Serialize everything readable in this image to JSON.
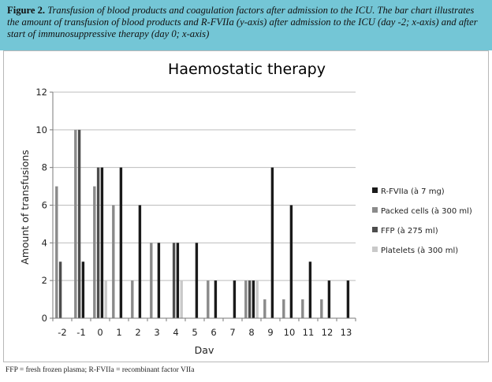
{
  "caption": {
    "label": "Figure 2.",
    "text": "Transfusion of blood products and coagulation factors after admission to the ICU. The bar chart illustrates the amount of transfusion of blood products and R-FVIIa (y-axis) after admission to the ICU (day -2; x-axis) and after start of immunosuppressive therapy (day 0; x-axis)"
  },
  "footnote": "FFP = fresh frozen plasma; R-FVIIa = recombinant factor VIIa",
  "chart_data": {
    "type": "bar",
    "title": "Haemostatic therapy",
    "xlabel": "Dav",
    "ylabel": "Amount of transfusions",
    "ylim": [
      0,
      12
    ],
    "yticks": [
      "0",
      "2",
      "4",
      "6",
      "8",
      "10",
      "12"
    ],
    "categories": [
      "-2",
      "-1",
      "0",
      "1",
      "2",
      "3",
      "4",
      "5",
      "6",
      "7",
      "8",
      "9",
      "10",
      "11",
      "12",
      "13"
    ],
    "grid": true,
    "legend_position": "right",
    "series": [
      {
        "name": "R-FVIIa (à 7 mg)",
        "color": "#1a1a1a",
        "values": [
          0,
          3,
          8,
          8,
          6,
          4,
          4,
          4,
          2,
          2,
          2,
          8,
          6,
          3,
          2,
          2
        ]
      },
      {
        "name": "Packed cells (à 300 ml)",
        "color": "#8a8a8a",
        "values": [
          7,
          10,
          7,
          6,
          2,
          4,
          0,
          0,
          2,
          0,
          2,
          1,
          1,
          1,
          1,
          0
        ]
      },
      {
        "name": "FFP (à 275 ml)",
        "color": "#4d4d4d",
        "values": [
          3,
          10,
          8,
          0,
          0,
          0,
          4,
          0,
          0,
          0,
          2,
          0,
          0,
          0,
          0,
          0
        ]
      },
      {
        "name": "Platelets (à 300 ml)",
        "color": "#c9c9c9",
        "values": [
          0,
          0,
          2,
          0,
          0,
          0,
          2,
          0,
          0,
          0,
          2,
          0,
          0,
          0,
          0,
          0
        ]
      }
    ]
  }
}
